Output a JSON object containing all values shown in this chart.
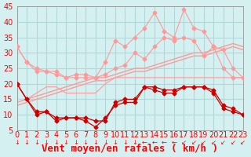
{
  "title": "",
  "xlabel": "Vent moyen/en rafales ( km/h )",
  "ylabel": "",
  "xlim": [
    0,
    23
  ],
  "ylim": [
    5,
    45
  ],
  "yticks": [
    5,
    10,
    15,
    20,
    25,
    30,
    35,
    40,
    45
  ],
  "xticks": [
    0,
    1,
    2,
    3,
    4,
    5,
    6,
    7,
    8,
    9,
    10,
    11,
    12,
    13,
    14,
    15,
    16,
    17,
    18,
    19,
    20,
    21,
    22,
    23
  ],
  "background_color": "#d4f0f0",
  "grid_color": "#b0d8d8",
  "line1_color": "#ff9999",
  "line2_color": "#ff9999",
  "line3_color": "#ff9999",
  "line4_color": "#ff9999",
  "line5_color": "#cc0000",
  "line6_color": "#cc0000",
  "line7_color": "#cc0000",
  "x": [
    0,
    1,
    2,
    3,
    4,
    5,
    6,
    7,
    8,
    9,
    10,
    11,
    12,
    13,
    14,
    15,
    16,
    17,
    18,
    19,
    20,
    21,
    22,
    23
  ],
  "series_light1": [
    32,
    27,
    24,
    24,
    23,
    22,
    22,
    22,
    22,
    23,
    25,
    26,
    30,
    28,
    32,
    35,
    34,
    35,
    34,
    29,
    32,
    25,
    22,
    22
  ],
  "series_light2": [
    20,
    15,
    17,
    19,
    19,
    17,
    17,
    17,
    17,
    20,
    22,
    22,
    22,
    22,
    22,
    22,
    22,
    22,
    22,
    22,
    22,
    22,
    22,
    22
  ],
  "series_light3_slope1": [
    14,
    15,
    16,
    17,
    18,
    19,
    20,
    21,
    22,
    22,
    23,
    24,
    25,
    25,
    26,
    27,
    28,
    29,
    30,
    30,
    31,
    32,
    33,
    32
  ],
  "series_light3_slope2": [
    13,
    14,
    15,
    16,
    17,
    18,
    19,
    20,
    21,
    21,
    22,
    23,
    24,
    24,
    25,
    26,
    27,
    28,
    29,
    29,
    30,
    31,
    32,
    31
  ],
  "series_rafales_max": [
    32,
    27,
    25,
    24,
    24,
    22,
    23,
    23,
    22,
    27,
    34,
    32,
    35,
    38,
    43,
    37,
    35,
    44,
    38,
    37,
    32,
    31,
    25,
    22
  ],
  "series_vent_moyen": [
    20,
    15,
    11,
    11,
    9,
    9,
    9,
    9,
    8,
    8,
    14,
    15,
    15,
    19,
    19,
    18,
    18,
    19,
    19,
    19,
    18,
    13,
    12,
    10
  ],
  "series_vent_min": [
    20,
    15,
    10,
    11,
    8,
    9,
    9,
    8,
    6,
    9,
    13,
    14,
    14,
    19,
    18,
    17,
    17,
    19,
    19,
    19,
    17,
    12,
    11,
    10
  ],
  "wind_dirs": [
    "↓",
    "↓",
    "↓",
    "↓",
    "↓",
    "↓",
    "↓",
    "↓",
    "↓",
    "↓",
    "↓",
    "↓",
    "↓",
    "←",
    "←",
    "←",
    "←",
    "↙",
    "↙",
    "↙",
    "↙",
    "↙",
    "↙",
    "↙"
  ],
  "tick_fontsize": 7,
  "xlabel_fontsize": 9
}
